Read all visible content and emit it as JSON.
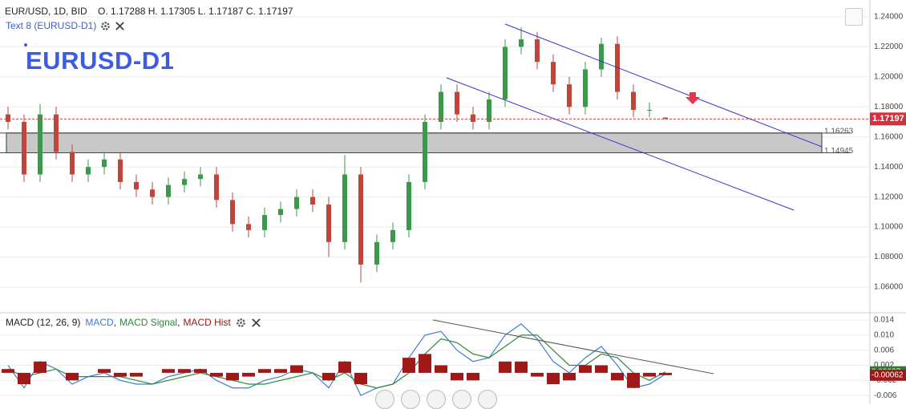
{
  "chart_data": [
    {
      "type": "candlestick",
      "title": "EUR/USD, 1D, BID",
      "subtitle": "O. 1.17288 H. 1.17305 L. 1.17187 C. 1.17197",
      "annotations": [
        "Text 8 (EURUSD-D1)",
        "EURUSD-D1"
      ],
      "categories": [
        null,
        null,
        null,
        null,
        null,
        null,
        null,
        null,
        null,
        null,
        null,
        null,
        null,
        null,
        null,
        null,
        null,
        null,
        null,
        null,
        null,
        null,
        null,
        null,
        null,
        null,
        null,
        null,
        null,
        null,
        null,
        null,
        null,
        null,
        null,
        null,
        null,
        null,
        null,
        null,
        null,
        null
      ],
      "open": [
        1.175,
        1.17,
        1.135,
        1.175,
        1.15,
        1.135,
        1.14,
        1.145,
        1.13,
        1.125,
        1.12,
        1.128,
        1.132,
        1.135,
        1.118,
        1.102,
        1.098,
        1.108,
        1.112,
        1.12,
        1.115,
        1.09,
        1.135,
        1.075,
        1.09,
        1.098,
        1.13,
        1.17,
        1.19,
        1.175,
        1.17,
        1.185,
        1.22,
        1.225,
        1.21,
        1.195,
        1.18,
        1.205,
        1.222,
        1.19,
        1.178,
        1.17288
      ],
      "high": [
        1.18,
        1.175,
        1.182,
        1.18,
        1.155,
        1.145,
        1.15,
        1.15,
        1.135,
        1.13,
        1.133,
        1.137,
        1.14,
        1.14,
        1.123,
        1.107,
        1.113,
        1.117,
        1.125,
        1.125,
        1.12,
        1.148,
        1.14,
        1.095,
        1.103,
        1.135,
        1.175,
        1.195,
        1.195,
        1.18,
        1.19,
        1.225,
        1.233,
        1.23,
        1.215,
        1.2,
        1.21,
        1.226,
        1.227,
        1.195,
        1.183,
        1.17305
      ],
      "low": [
        1.165,
        1.13,
        1.13,
        1.145,
        1.13,
        1.13,
        1.135,
        1.125,
        1.12,
        1.115,
        1.115,
        1.123,
        1.127,
        1.113,
        1.097,
        1.093,
        1.093,
        1.103,
        1.107,
        1.11,
        1.08,
        1.085,
        1.063,
        1.07,
        1.085,
        1.093,
        1.125,
        1.165,
        1.17,
        1.165,
        1.165,
        1.18,
        1.215,
        1.205,
        1.19,
        1.175,
        1.175,
        1.2,
        1.185,
        1.173,
        1.173,
        1.17187
      ],
      "close": [
        1.17,
        1.135,
        1.175,
        1.15,
        1.135,
        1.14,
        1.145,
        1.13,
        1.125,
        1.12,
        1.128,
        1.132,
        1.135,
        1.118,
        1.102,
        1.098,
        1.108,
        1.112,
        1.12,
        1.115,
        1.09,
        1.135,
        1.075,
        1.09,
        1.098,
        1.13,
        1.17,
        1.19,
        1.175,
        1.17,
        1.185,
        1.22,
        1.225,
        1.21,
        1.195,
        1.18,
        1.205,
        1.222,
        1.19,
        1.178,
        1.178,
        1.17197
      ],
      "up_color": "#3a9a4a",
      "down_color": "#c0453a",
      "last_price": 1.17197,
      "zone": [
        1.16263,
        1.14945
      ],
      "ylim": [
        1.0429,
        1.2512
      ],
      "yticks": [
        {
          "value": 1.06,
          "label": "1.06000"
        },
        {
          "value": 1.08,
          "label": "1.08000"
        },
        {
          "value": 1.1,
          "label": "1.10000"
        },
        {
          "value": 1.12,
          "label": "1.12000"
        },
        {
          "value": 1.14,
          "label": "1.14000"
        },
        {
          "value": 1.16,
          "label": "1.16000"
        },
        {
          "value": 1.18,
          "label": "1.18000"
        },
        {
          "value": 1.2,
          "label": "1.20000"
        },
        {
          "value": 1.22,
          "label": "1.22000"
        },
        {
          "value": 1.24,
          "label": "1.24000"
        }
      ],
      "grid": true
    },
    {
      "type": "macd",
      "title": "MACD (12, 26, 9)",
      "categories": [
        null,
        null,
        null,
        null,
        null,
        null,
        null,
        null,
        null,
        null,
        null,
        null,
        null,
        null,
        null,
        null,
        null,
        null,
        null,
        null,
        null,
        null,
        null,
        null,
        null,
        null,
        null,
        null,
        null,
        null,
        null,
        null,
        null,
        null,
        null,
        null,
        null,
        null,
        null,
        null,
        null,
        null
      ],
      "series": [
        {
          "name": "MACD",
          "color": "#3f7fd0",
          "values": [
            0.002,
            -0.004,
            0.003,
            0.001,
            -0.003,
            -0.001,
            0.0,
            -0.002,
            -0.003,
            -0.003,
            -0.001,
            0.0,
            0.001,
            -0.002,
            -0.004,
            -0.004,
            -0.002,
            -0.001,
            0.001,
            0.0,
            -0.004,
            0.003,
            -0.006,
            -0.004,
            -0.003,
            0.004,
            0.01,
            0.011,
            0.006,
            0.003,
            0.004,
            0.01,
            0.013,
            0.009,
            0.003,
            0.0,
            0.004,
            0.007,
            0.002,
            -0.004,
            -0.003,
            -0.00035
          ]
        },
        {
          "name": "MACD Signal",
          "color": "#2e8b3a",
          "values": [
            0.001,
            -0.001,
            0.0,
            0.001,
            -0.001,
            -0.001,
            -0.001,
            -0.001,
            -0.002,
            -0.003,
            -0.002,
            -0.001,
            0.0,
            -0.001,
            -0.002,
            -0.003,
            -0.003,
            -0.002,
            -0.001,
            0.0,
            -0.002,
            0.0,
            -0.003,
            -0.004,
            -0.003,
            0.0,
            0.005,
            0.009,
            0.008,
            0.005,
            0.004,
            0.007,
            0.01,
            0.01,
            0.006,
            0.002,
            0.002,
            0.005,
            0.004,
            0.0,
            -0.002,
            0.00027
          ]
        },
        {
          "name": "MACD Hist",
          "color": "#a01818",
          "values": [
            0.001,
            -0.003,
            0.003,
            0.0,
            -0.002,
            0.0,
            0.001,
            -0.001,
            -0.001,
            0.0,
            0.001,
            0.001,
            0.001,
            -0.001,
            -0.002,
            -0.001,
            0.001,
            0.001,
            0.002,
            0.0,
            -0.002,
            0.003,
            -0.003,
            0.0,
            0.0,
            0.004,
            0.005,
            0.002,
            -0.002,
            -0.002,
            0.0,
            0.003,
            0.003,
            -0.001,
            -0.003,
            -0.002,
            0.002,
            0.002,
            -0.002,
            -0.004,
            -0.001,
            -0.00062
          ]
        }
      ],
      "ylim": [
        -0.0081,
        0.0155
      ],
      "yticks": [
        -0.006,
        -0.002,
        0.002,
        0.006,
        {
          "value": 0.01,
          "label": "0.010"
        },
        0.014
      ],
      "grid": true
    }
  ]
}
